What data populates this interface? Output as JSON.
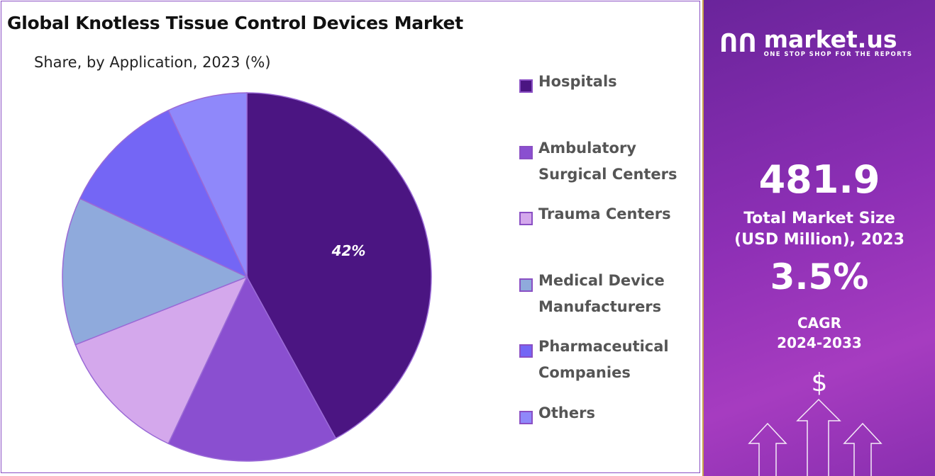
{
  "title": "Global Knotless Tissue Control Devices Market",
  "subtitle": "Share, by Application, 2023 (%)",
  "chart_data": {
    "type": "pie",
    "categories": [
      "Hospitals",
      "Ambulatory Surgical Centers",
      "Trauma Centers",
      "Medical Device Manufacturers",
      "Pharmaceutical Companies",
      "Others"
    ],
    "values": [
      42,
      15,
      12,
      13,
      11,
      7
    ],
    "colors": [
      "#4b1582",
      "#8a4fd0",
      "#d4a8ec",
      "#8faadc",
      "#7466f5",
      "#8f88fa"
    ],
    "data_labels": [
      "42%",
      "",
      "",
      "",
      "",
      ""
    ],
    "legend_position": "right",
    "start": "top, clockwise"
  },
  "legend": [
    {
      "label": "Hospitals"
    },
    {
      "label": "Ambulatory\nSurgical Centers"
    },
    {
      "label": "Trauma Centers"
    },
    {
      "label": "Medical Device\nManufacturers"
    },
    {
      "label": "Pharmaceutical\nCompanies"
    },
    {
      "label": "Others"
    }
  ],
  "panel": {
    "brand": "market.us",
    "tagline": "ONE STOP SHOP FOR THE REPORTS",
    "market_size": "481.9",
    "market_size_label": "Total Market Size\n(USD Million), 2023",
    "cagr": "3.5%",
    "cagr_label": "CAGR\n2024-2033",
    "currency_symbol": "$"
  }
}
